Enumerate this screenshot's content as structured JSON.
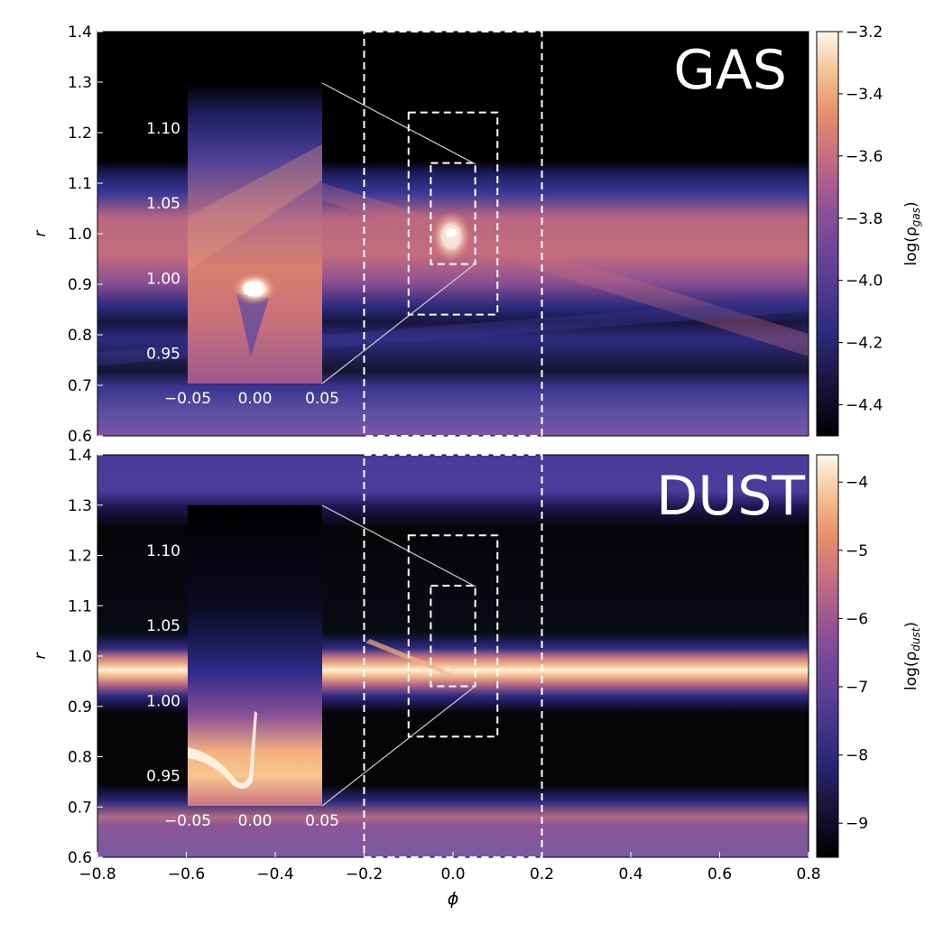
{
  "chart_data": [
    {
      "type": "heatmap",
      "panel": "gas",
      "label": "GAS",
      "ylabel": "r",
      "xlim": [
        -0.8,
        0.8
      ],
      "ylim": [
        0.6,
        1.4
      ],
      "y_ticks": [
        "0.6",
        "0.7",
        "0.8",
        "0.9",
        "1.0",
        "1.1",
        "1.2",
        "1.3",
        "1.4"
      ],
      "x_ticks": [],
      "colorbar": {
        "label": "log(ρ",
        "label_sub": "gas",
        "label_end": ")",
        "range": [
          -4.5,
          -3.2
        ],
        "ticks": [
          "−3.2",
          "−3.4",
          "−3.6",
          "−3.8",
          "−4.0",
          "−4.2",
          "−4.4"
        ],
        "tick_values": [
          -3.2,
          -3.4,
          -3.6,
          -3.8,
          -4.0,
          -4.2,
          -4.4
        ]
      },
      "inset": {
        "xlim": [
          -0.05,
          0.05
        ],
        "x_ticks": [
          "−0.05",
          "0.00",
          "0.05"
        ],
        "y_ticks": [
          "0.95",
          "1.00",
          "1.05",
          "1.10"
        ]
      },
      "zoom_boxes": [
        {
          "phi": [
            -0.2,
            0.2
          ],
          "r": [
            0.6,
            1.4
          ]
        },
        {
          "phi": [
            -0.1,
            0.1
          ],
          "r": [
            0.84,
            1.24
          ]
        },
        {
          "phi": [
            -0.05,
            0.05
          ],
          "r": [
            0.94,
            1.14
          ]
        }
      ]
    },
    {
      "type": "heatmap",
      "panel": "dust",
      "label": "DUST",
      "ylabel": "r",
      "xlabel": "ϕ",
      "xlim": [
        -0.8,
        0.8
      ],
      "ylim": [
        0.6,
        1.4
      ],
      "y_ticks": [
        "0.6",
        "0.7",
        "0.8",
        "0.9",
        "1.0",
        "1.1",
        "1.2",
        "1.3",
        "1.4"
      ],
      "x_ticks": [
        "−0.8",
        "−0.6",
        "−0.4",
        "−0.2",
        "0.0",
        "0.2",
        "0.4",
        "0.6",
        "0.8"
      ],
      "colorbar": {
        "label": "log(ρ",
        "label_sub": "dust",
        "label_end": ")",
        "range": [
          -9.5,
          -3.6
        ],
        "ticks": [
          "−4",
          "−5",
          "−6",
          "−7",
          "−8",
          "−9"
        ],
        "tick_values": [
          -4,
          -5,
          -6,
          -7,
          -8,
          -9
        ]
      },
      "inset": {
        "xlim": [
          -0.05,
          0.05
        ],
        "x_ticks": [
          "−0.05",
          "0.00",
          "0.05"
        ],
        "y_ticks": [
          "0.95",
          "1.00",
          "1.05",
          "1.10"
        ]
      },
      "zoom_boxes": [
        {
          "phi": [
            -0.2,
            0.2
          ],
          "r": [
            0.6,
            1.4
          ]
        },
        {
          "phi": [
            -0.1,
            0.1
          ],
          "r": [
            0.84,
            1.24
          ]
        },
        {
          "phi": [
            -0.05,
            0.05
          ],
          "r": [
            0.94,
            1.14
          ]
        }
      ]
    }
  ],
  "colors": {
    "colormap": [
      "#000000",
      "#1a1238",
      "#2b2a7a",
      "#5a3f96",
      "#8a4f98",
      "#c26a84",
      "#e88f6c",
      "#f5c89a",
      "#fff6ee"
    ],
    "box_stroke": "#ffffff"
  }
}
